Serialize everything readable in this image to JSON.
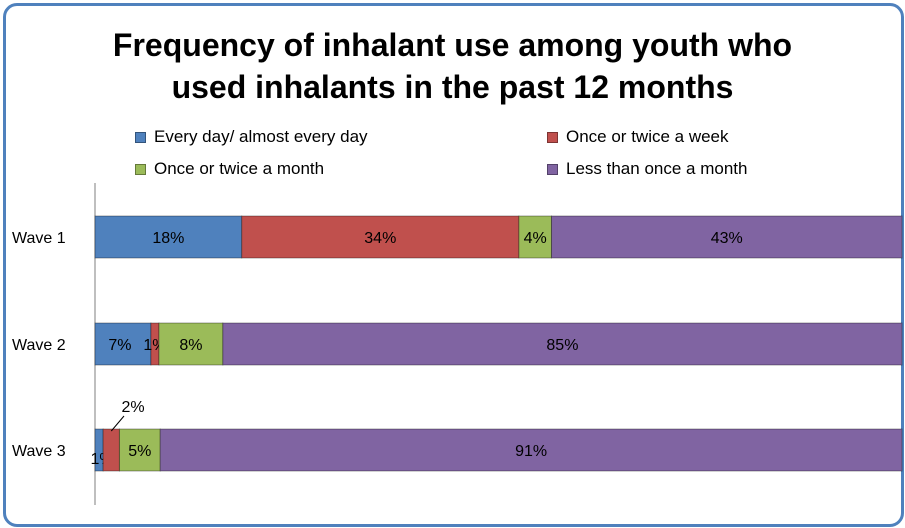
{
  "chart_data": {
    "type": "bar",
    "orientation": "horizontal",
    "stacked": true,
    "title": "Frequency of inhalant use among youth who used inhalants in the past 12 months",
    "title_lines": [
      "Frequency of inhalant use among youth who",
      "used inhalants in the past 12 months"
    ],
    "categories": [
      "Wave 1",
      "Wave 2",
      "Wave 3"
    ],
    "series": [
      {
        "name": "Every day/ almost every day",
        "color": "#4f81bd",
        "values": [
          18,
          7,
          1
        ],
        "labels": [
          "18%",
          "7%",
          "1%"
        ]
      },
      {
        "name": "Once or twice a week",
        "color": "#c0504d",
        "values": [
          34,
          1,
          2
        ],
        "labels": [
          "34%",
          "1%",
          "2%"
        ]
      },
      {
        "name": "Once or twice a month",
        "color": "#9bbb59",
        "values": [
          4,
          8,
          5
        ],
        "labels": [
          "4%",
          "8%",
          "5%"
        ]
      },
      {
        "name": "Less than once a month",
        "color": "#8064a2",
        "values": [
          43,
          85,
          91
        ],
        "labels": [
          "43%",
          "85%",
          "91%"
        ]
      }
    ],
    "xlim": [
      0,
      100
    ],
    "legend_position": "top",
    "grid": false
  }
}
